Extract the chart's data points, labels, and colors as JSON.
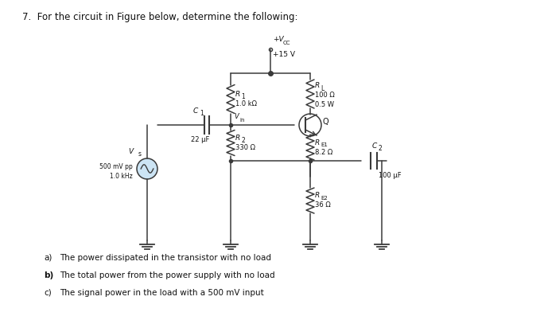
{
  "title": "7.  For the circuit in Figure below, determine the following:",
  "vcc_label1": "+V",
  "vcc_label2": "CC",
  "vcc_value": "+15 V",
  "R1_label": "R",
  "R1_sub": "1",
  "R1_value": "1.0 kΩ",
  "RL_label": "R",
  "RL_sub": "L",
  "RL_value": "100 Ω",
  "RL_power": "0.5 W",
  "R2_label": "R",
  "R2_sub": "2",
  "R2_value": "330 Ω",
  "RE1_label": "R",
  "RE1_sub": "E1",
  "RE1_value": "8.2 Ω",
  "RE2_label": "R",
  "RE2_sub": "E2",
  "RE2_value": "36 Ω",
  "C1_label": "C",
  "C1_sub": "1",
  "C1_value": "22 μF",
  "C2_label": "C",
  "C2_sub": "2",
  "C2_value": "100 μF",
  "Q_label": "Q",
  "Vs_label": "V",
  "Vs_sub": "s",
  "Vs_value1": "500 mV pp",
  "Vs_value2": "1.0 kHz",
  "Vin_label": "V",
  "Vin_sub": "in",
  "q_a_bold": "a)",
  "q_a_text": "   The power dissipated in the transistor with no load",
  "q_b_bold": "b)",
  "q_b_text": "   The total power from the power supply with no load",
  "q_c_bold": "c)",
  "q_c_text": "   The signal power in the load with a 500 mV input",
  "bg_color": "#ffffff",
  "line_color": "#3a3a3a"
}
